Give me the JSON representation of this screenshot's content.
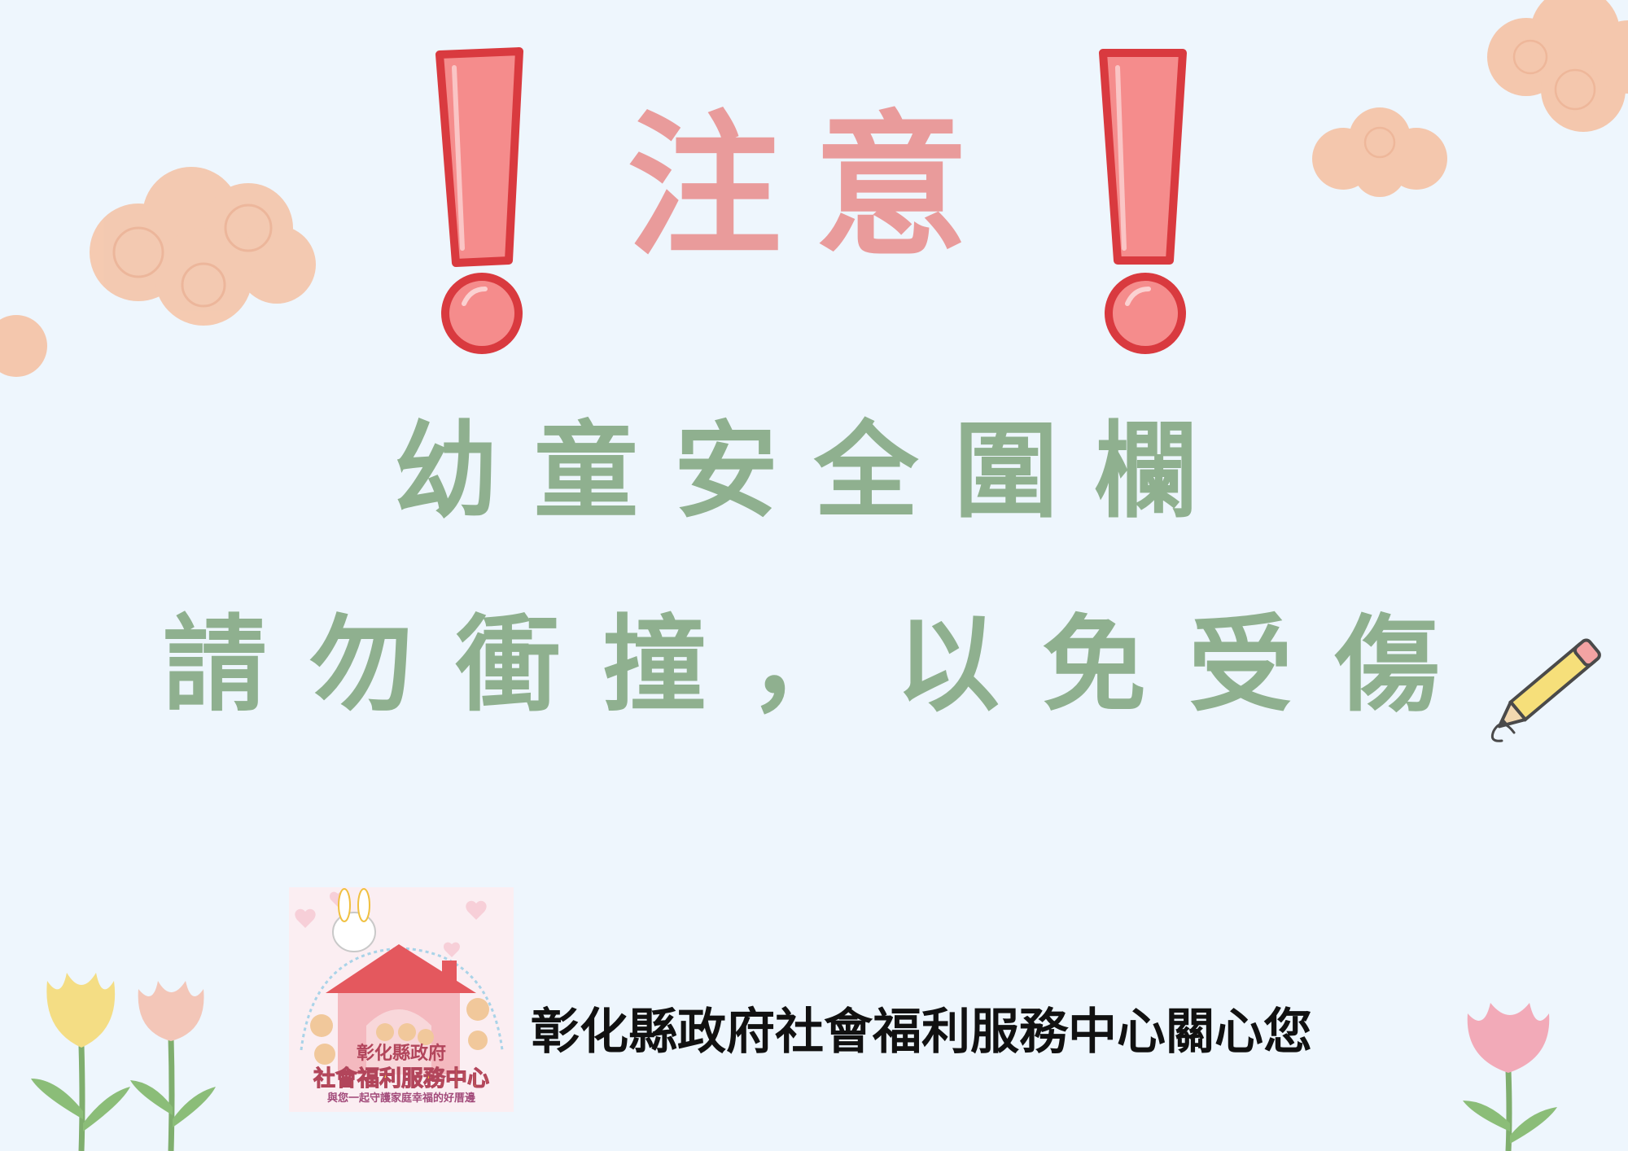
{
  "notice": {
    "title": "注意",
    "line1": "幼童安全圍欄",
    "line2": "請勿衝撞，以免受傷"
  },
  "footer": {
    "message": "彰化縣政府社會福利服務中心關心您"
  },
  "logo": {
    "top_text": "彰化縣政府",
    "main_text": "社會福利服務中心",
    "tagline": "與您一起守護家庭幸福的好厝邊"
  },
  "colors": {
    "background": "#eef6fd",
    "title": "#e99b9b",
    "exclamation_fill": "#f58c8c",
    "exclamation_outline": "#d93a3f",
    "message_green": "#8fb08f",
    "cloud": "#f4c7ad",
    "footer_text": "#111111"
  }
}
